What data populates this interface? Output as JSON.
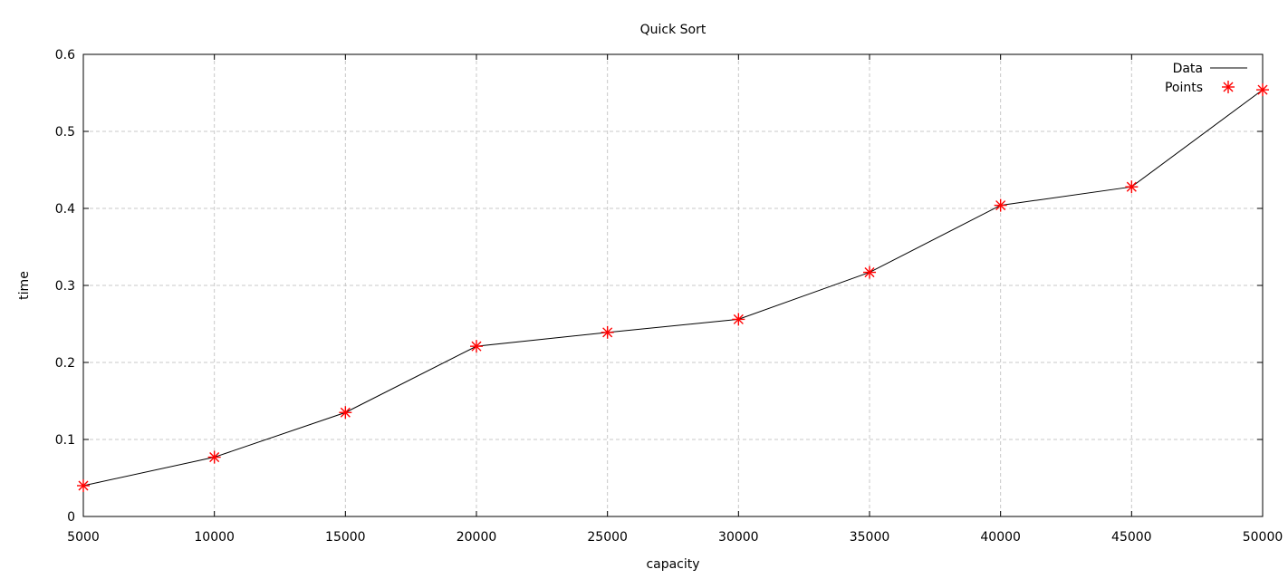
{
  "chart_data": {
    "type": "line",
    "title": "Quick Sort",
    "xlabel": "capacity",
    "ylabel": "time",
    "xlim": [
      5000,
      50000
    ],
    "ylim": [
      0,
      0.6
    ],
    "x_ticks": [
      "5000",
      "10000",
      "15000",
      "20000",
      "25000",
      "30000",
      "35000",
      "40000",
      "45000",
      "50000"
    ],
    "y_ticks": [
      "0",
      "0.1",
      "0.2",
      "0.3",
      "0.4",
      "0.5",
      "0.6"
    ],
    "x_tick_values": [
      5000,
      10000,
      15000,
      20000,
      25000,
      30000,
      35000,
      40000,
      45000,
      50000
    ],
    "y_tick_values": [
      0,
      0.1,
      0.2,
      0.3,
      0.4,
      0.5,
      0.6
    ],
    "grid": true,
    "legend_position": "top-right",
    "x": [
      5000,
      10000,
      15000,
      20000,
      25000,
      30000,
      35000,
      40000,
      45000,
      50000
    ],
    "series": [
      {
        "name": "Data",
        "style": "line",
        "color": "#000000",
        "values": [
          0.04,
          0.077,
          0.135,
          0.221,
          0.239,
          0.256,
          0.317,
          0.404,
          0.428,
          0.554
        ]
      },
      {
        "name": "Points",
        "style": "marker",
        "marker": "asterisk",
        "color": "#ff0000",
        "values": [
          0.04,
          0.077,
          0.135,
          0.221,
          0.239,
          0.256,
          0.317,
          0.404,
          0.428,
          0.554
        ]
      }
    ]
  }
}
